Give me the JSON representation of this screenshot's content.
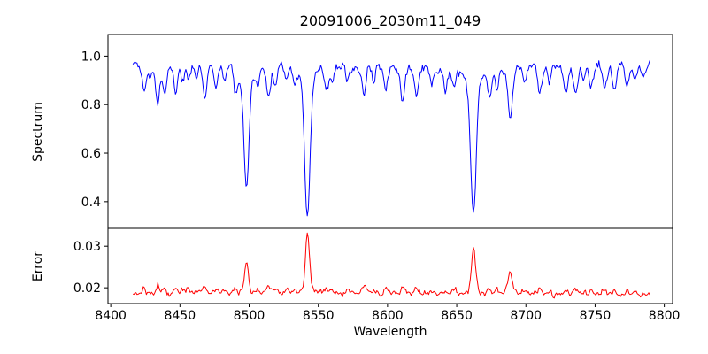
{
  "figure": {
    "background": "#ffffff",
    "frame_color": "#000000"
  },
  "chart_data": {
    "type": "line",
    "title": "20091006_2030m11_049",
    "xlabel": "Wavelength",
    "legend": "none",
    "grid": false,
    "xlim": [
      8398,
      8806
    ],
    "x_ticks": [
      {
        "value": 8400,
        "label": "8400"
      },
      {
        "value": 8450,
        "label": "8450"
      },
      {
        "value": 8500,
        "label": "8500"
      },
      {
        "value": 8550,
        "label": "8550"
      },
      {
        "value": 8600,
        "label": "8600"
      },
      {
        "value": 8650,
        "label": "8650"
      },
      {
        "value": 8700,
        "label": "8700"
      },
      {
        "value": 8750,
        "label": "8750"
      },
      {
        "value": 8800,
        "label": "8800"
      }
    ],
    "x_range": {
      "start": 8416,
      "end": 8790,
      "step": 0.75
    },
    "noise_seed": 20091006,
    "panels": [
      {
        "name": "spectrum",
        "ylabel": "Spectrum",
        "color": "#0000ff",
        "ylim": [
          0.29,
          1.089
        ],
        "y_ticks": [
          {
            "value": 1.0,
            "label": "1.0"
          },
          {
            "value": 0.8,
            "label": "0.8"
          },
          {
            "value": 0.6,
            "label": "0.6"
          },
          {
            "value": 0.4,
            "label": "0.4"
          }
        ],
        "continuum": 0.958,
        "noise_sigma": 0.009,
        "noise_ar": 0.45,
        "strong_lines": [
          {
            "center": 8498.0,
            "depth": 0.5,
            "sigma": 1.8,
            "gamma": 4.0
          },
          {
            "center": 8542.1,
            "depth": 0.633,
            "sigma": 1.9,
            "gamma": 4.5
          },
          {
            "center": 8662.1,
            "depth": 0.61,
            "sigma": 1.9,
            "gamma": 4.5
          }
        ],
        "weak_lines": [
          [
            8424,
            0.1,
            1.4
          ],
          [
            8428,
            0.06,
            1.2
          ],
          [
            8434,
            0.155,
            1.5
          ],
          [
            8439,
            0.1,
            1.3
          ],
          [
            8447,
            0.11,
            1.4
          ],
          [
            8452,
            0.07,
            1.2
          ],
          [
            8456,
            0.06,
            1.2
          ],
          [
            8462,
            0.05,
            1.2
          ],
          [
            8468,
            0.135,
            1.5
          ],
          [
            8476,
            0.08,
            1.3
          ],
          [
            8482,
            0.05,
            1.2
          ],
          [
            8490,
            0.09,
            1.3
          ],
          [
            8506,
            0.06,
            1.3
          ],
          [
            8514,
            0.125,
            1.5
          ],
          [
            8519,
            0.08,
            1.3
          ],
          [
            8527,
            0.07,
            1.3
          ],
          [
            8533,
            0.06,
            1.2
          ],
          [
            8556,
            0.09,
            1.4
          ],
          [
            8560,
            0.07,
            1.2
          ],
          [
            8571,
            0.05,
            1.2
          ],
          [
            8583,
            0.12,
            1.5
          ],
          [
            8590,
            0.06,
            1.2
          ],
          [
            8599,
            0.09,
            1.3
          ],
          [
            8611,
            0.135,
            1.5
          ],
          [
            8621,
            0.1,
            1.4
          ],
          [
            8632,
            0.06,
            1.2
          ],
          [
            8642,
            0.05,
            1.2
          ],
          [
            8648,
            0.07,
            1.2
          ],
          [
            8674,
            0.105,
            1.4
          ],
          [
            8679,
            0.08,
            1.2
          ],
          [
            8688.6,
            0.215,
            1.7
          ],
          [
            8699,
            0.07,
            1.3
          ],
          [
            8710,
            0.1,
            1.4
          ],
          [
            8717,
            0.07,
            1.2
          ],
          [
            8729,
            0.11,
            1.4
          ],
          [
            8736,
            0.105,
            1.4
          ],
          [
            8742,
            0.06,
            1.2
          ],
          [
            8747,
            0.08,
            1.2
          ],
          [
            8757,
            0.1,
            1.4
          ],
          [
            8764,
            0.095,
            1.3
          ],
          [
            8773,
            0.08,
            1.3
          ],
          [
            8779,
            0.06,
            1.2
          ],
          [
            8785,
            0.05,
            1.2
          ]
        ]
      },
      {
        "name": "error",
        "ylabel": "Error",
        "color": "#ff0000",
        "ylim": [
          0.0162,
          0.0343
        ],
        "y_ticks": [
          {
            "value": 0.03,
            "label": "0.03"
          },
          {
            "value": 0.02,
            "label": "0.02"
          }
        ],
        "baseline": 0.0185,
        "noise_sigma": 0.00032,
        "noise_ar": 0.3,
        "peaks": [
          [
            8498.0,
            0.0075,
            1.3
          ],
          [
            8542.1,
            0.0145,
            1.4
          ],
          [
            8662.1,
            0.0113,
            1.4
          ],
          [
            8688.6,
            0.0028,
            1.5
          ]
        ],
        "weak_line_error_factor": 0.012
      }
    ]
  }
}
